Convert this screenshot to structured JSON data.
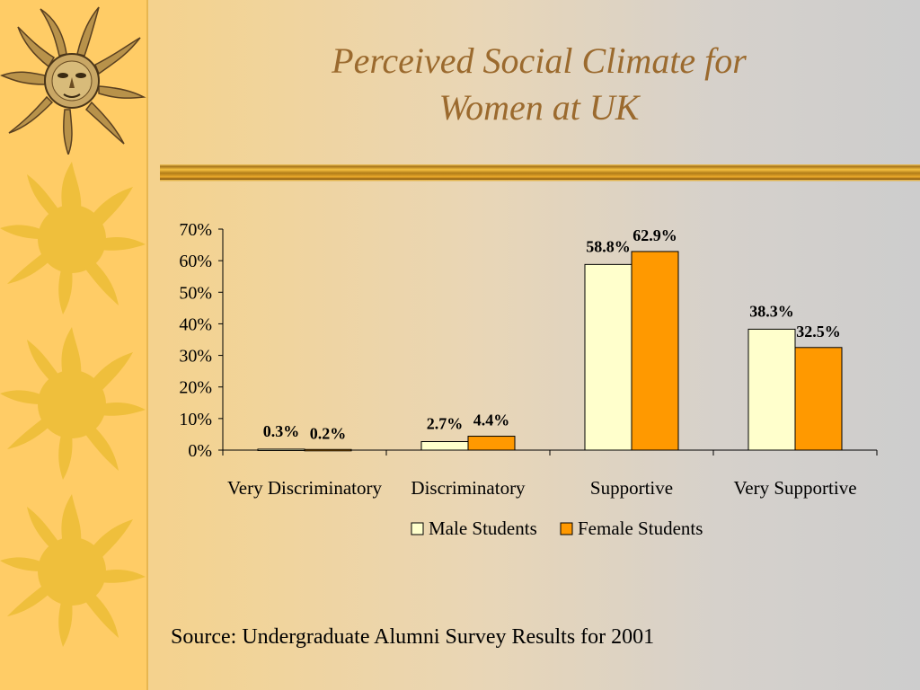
{
  "slide": {
    "title_line1": "Perceived Social Climate for",
    "title_line2": "Women at UK",
    "source": "Source: Undergraduate Alumni Survey Results for 2001"
  },
  "decor": {
    "sidebar_color": "#ffcc66",
    "sun_icons": [
      "sun-face-icon",
      "sun-icon",
      "sun-icon",
      "sun-icon"
    ]
  },
  "chart_data": {
    "type": "bar",
    "categories": [
      "Very Discriminatory",
      "Discriminatory",
      "Supportive",
      "Very Supportive"
    ],
    "series": [
      {
        "name": "Male Students",
        "values": [
          0.3,
          2.7,
          58.8,
          38.3
        ],
        "labels": [
          "0.3%",
          "2.7%",
          "58.8%",
          "38.3%"
        ],
        "color": "#ffffcc"
      },
      {
        "name": "Female Students",
        "values": [
          0.2,
          4.4,
          62.9,
          32.5
        ],
        "labels": [
          "0.2%",
          "4.4%",
          "62.9%",
          "32.5%"
        ],
        "color": "#ff9900"
      }
    ],
    "yticks": [
      "0%",
      "10%",
      "20%",
      "30%",
      "40%",
      "50%",
      "60%",
      "70%"
    ],
    "ylim": [
      0,
      70
    ],
    "title": "",
    "xlabel": "",
    "ylabel": "",
    "grid": false,
    "legend": "bottom"
  }
}
